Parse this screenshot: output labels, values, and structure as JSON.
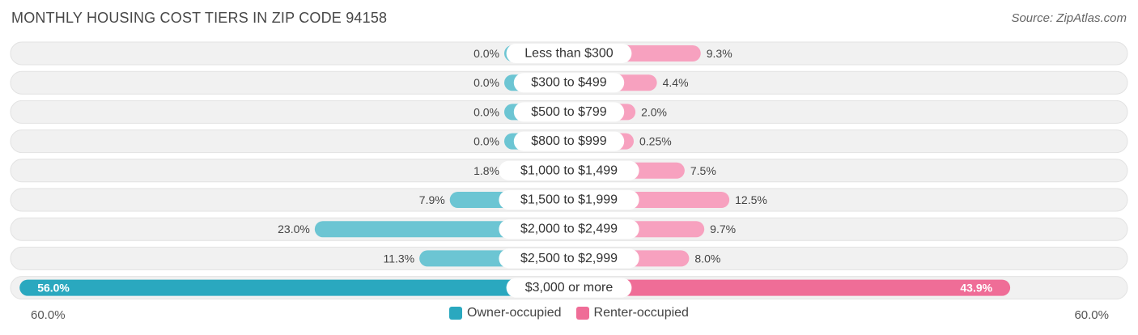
{
  "title": "MONTHLY HOUSING COST TIERS IN ZIP CODE 94158",
  "source": "Source: ZipAtlas.com",
  "colors": {
    "owner": "#6cc5d3",
    "owner_strong": "#2aa8bf",
    "renter": "#f7a1bf",
    "renter_strong": "#ef6d97",
    "track": "#f1f1f1"
  },
  "chart_data": {
    "type": "bar",
    "orientation": "diverging-horizontal",
    "categories": [
      "Less than $300",
      "$300 to $499",
      "$500 to $799",
      "$800 to $999",
      "$1,000 to $1,499",
      "$1,500 to $1,999",
      "$2,000 to $2,499",
      "$2,500 to $2,999",
      "$3,000 or more"
    ],
    "series": [
      {
        "name": "Owner-occupied",
        "values": [
          0.0,
          0.0,
          0.0,
          0.0,
          1.8,
          7.9,
          23.0,
          11.3,
          56.0
        ],
        "labels": [
          "0.0%",
          "0.0%",
          "0.0%",
          "0.0%",
          "1.8%",
          "7.9%",
          "23.0%",
          "11.3%",
          "56.0%"
        ]
      },
      {
        "name": "Renter-occupied",
        "values": [
          9.3,
          4.4,
          2.0,
          0.25,
          7.5,
          12.5,
          9.7,
          8.0,
          43.9
        ],
        "labels": [
          "9.3%",
          "4.4%",
          "2.0%",
          "0.25%",
          "7.5%",
          "12.5%",
          "9.7%",
          "8.0%",
          "43.9%"
        ]
      }
    ],
    "axis_min_label": "60.0%",
    "axis_max_label": "60.0%",
    "xlim": [
      -60,
      60
    ]
  }
}
